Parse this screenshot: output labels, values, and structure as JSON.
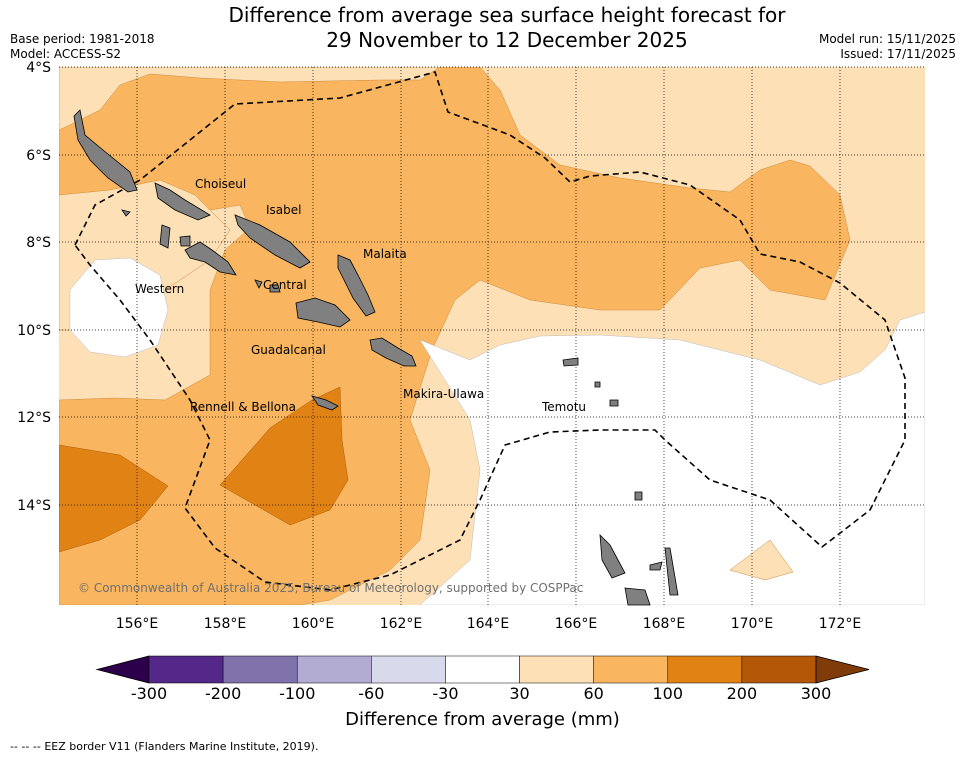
{
  "header": {
    "base_period": "Base period: 1981-2018",
    "model": "Model: ACCESS-S2",
    "model_run": "Model run: 15/11/2025",
    "issued": "Issued: 17/11/2025",
    "title_line1": "Difference from average sea surface height forecast for",
    "title_line2": "29 November to 12 December 2025"
  },
  "map": {
    "lat_ticks": [
      "4°S",
      "6°S",
      "8°S",
      "10°S",
      "12°S",
      "14°S"
    ],
    "lon_ticks": [
      "156°E",
      "158°E",
      "160°E",
      "162°E",
      "164°E",
      "166°E",
      "168°E",
      "170°E",
      "172°E"
    ],
    "region_labels": {
      "choiseul": "Choiseul",
      "isabel": "Isabel",
      "malaita": "Malaita",
      "western": "Western",
      "central": "Central",
      "guadalcanal": "Guadalcanal",
      "makira_ulawa": "Makira-Ulawa",
      "temotu": "Temotu",
      "rennell_bellona": "Rennell & Bellona"
    },
    "copyright": "© Commonwealth of Australia 2025, Bureau of Meteorology, supported by COSPPac"
  },
  "colorbar": {
    "label": "Difference from average (mm)",
    "ticks": [
      "-300",
      "-200",
      "-100",
      "-60",
      "-30",
      "30",
      "60",
      "100",
      "200",
      "300"
    ],
    "colors": {
      "below_min": "#2d004b",
      "bins": [
        "#542788",
        "#8073ac",
        "#b2abd2",
        "#d8daeb",
        "#ffffff",
        "#fee0b6",
        "#f9b55f",
        "#e08214",
        "#b35806"
      ],
      "above_max": "#7f3b08"
    }
  },
  "footer": {
    "eez_legend_symbol": "--  --  --",
    "eez_legend_text": "EEZ border V11 (Flanders Marine Institute, 2019)."
  }
}
